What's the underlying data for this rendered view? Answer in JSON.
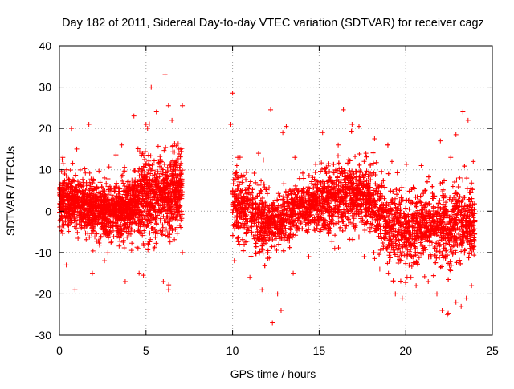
{
  "chart_data": {
    "type": "scatter",
    "title": "Day 182 of 2011, Sidereal Day-to-day VTEC variation (SDTVAR) for receiver cagz",
    "xlabel": "GPS time / hours",
    "ylabel": "SDTVAR / TECUs",
    "xlim": [
      0,
      25
    ],
    "ylim": [
      -30,
      40
    ],
    "xticks": [
      0,
      5,
      10,
      15,
      20,
      25
    ],
    "yticks": [
      -30,
      -20,
      -10,
      0,
      10,
      20,
      30,
      40
    ],
    "xtick_labels": [
      "0",
      "5",
      "10",
      "15",
      "20",
      "25"
    ],
    "ytick_labels": [
      "-30",
      "-20",
      "-10",
      "0",
      "10",
      "20",
      "30",
      "40"
    ],
    "grid": true,
    "legend": "none",
    "marker": "+",
    "series": [
      {
        "name": "SDTVAR",
        "color": "#ff0000",
        "coverage_hours": [
          [
            0,
            7.1
          ],
          [
            10,
            24
          ]
        ],
        "gap_hours": [
          7.1,
          10
        ],
        "center_trend": [
          {
            "x": 0.0,
            "y": 2
          },
          {
            "x": 1.0,
            "y": 2
          },
          {
            "x": 2.0,
            "y": 0
          },
          {
            "x": 3.0,
            "y": 0
          },
          {
            "x": 4.0,
            "y": 1
          },
          {
            "x": 5.0,
            "y": 3
          },
          {
            "x": 6.0,
            "y": 4
          },
          {
            "x": 7.0,
            "y": 4
          },
          {
            "x": 10.0,
            "y": 2
          },
          {
            "x": 11.0,
            "y": 0
          },
          {
            "x": 12.0,
            "y": -3
          },
          {
            "x": 13.0,
            "y": -1
          },
          {
            "x": 14.0,
            "y": 1
          },
          {
            "x": 15.0,
            "y": 2
          },
          {
            "x": 16.0,
            "y": 3
          },
          {
            "x": 17.0,
            "y": 4
          },
          {
            "x": 18.0,
            "y": 2
          },
          {
            "x": 19.0,
            "y": -3
          },
          {
            "x": 20.0,
            "y": -5
          },
          {
            "x": 21.0,
            "y": -3
          },
          {
            "x": 22.0,
            "y": -4
          },
          {
            "x": 23.0,
            "y": -3
          },
          {
            "x": 24.0,
            "y": -3
          }
        ],
        "points": [
          {
            "x": 6.1,
            "y": 33
          },
          {
            "x": 5.3,
            "y": 30
          },
          {
            "x": 10.0,
            "y": 28.5
          },
          {
            "x": 7.1,
            "y": 25.5
          },
          {
            "x": 6.3,
            "y": 25.5
          },
          {
            "x": 5.6,
            "y": 24
          },
          {
            "x": 12.2,
            "y": 24.5
          },
          {
            "x": 16.4,
            "y": 24.5
          },
          {
            "x": 23.3,
            "y": 24
          },
          {
            "x": 4.3,
            "y": 23
          },
          {
            "x": 5.0,
            "y": 21
          },
          {
            "x": 0.7,
            "y": 20
          },
          {
            "x": 1.7,
            "y": 21
          },
          {
            "x": 9.9,
            "y": 21
          },
          {
            "x": 13.1,
            "y": 20.5
          },
          {
            "x": 16.9,
            "y": 21
          },
          {
            "x": 17.3,
            "y": 20.5
          },
          {
            "x": 23.6,
            "y": 22
          },
          {
            "x": 22.9,
            "y": 18.5
          },
          {
            "x": 15.2,
            "y": 19
          },
          {
            "x": 6.5,
            "y": 22
          },
          {
            "x": 12.9,
            "y": 19
          },
          {
            "x": 18.2,
            "y": 17.5
          },
          {
            "x": 22.0,
            "y": 17
          },
          {
            "x": 0.2,
            "y": 13
          },
          {
            "x": 1.0,
            "y": 15
          },
          {
            "x": 3.6,
            "y": 16
          },
          {
            "x": 4.8,
            "y": 14
          },
          {
            "x": 6.9,
            "y": 15
          },
          {
            "x": 10.3,
            "y": 13
          },
          {
            "x": 11.5,
            "y": 14
          },
          {
            "x": 13.6,
            "y": 13
          },
          {
            "x": 16.1,
            "y": 16
          },
          {
            "x": 17.7,
            "y": 14
          },
          {
            "x": 19.2,
            "y": 12
          },
          {
            "x": 20.9,
            "y": 11
          },
          {
            "x": 22.6,
            "y": 13
          },
          {
            "x": 23.9,
            "y": 12
          },
          {
            "x": 0.9,
            "y": -19
          },
          {
            "x": 6.3,
            "y": -19
          },
          {
            "x": 3.8,
            "y": -17
          },
          {
            "x": 1.9,
            "y": -15
          },
          {
            "x": 4.6,
            "y": -15
          },
          {
            "x": 6.0,
            "y": -17
          },
          {
            "x": 0.4,
            "y": -13
          },
          {
            "x": 2.6,
            "y": -12
          },
          {
            "x": 7.1,
            "y": -10
          },
          {
            "x": 12.3,
            "y": -27
          },
          {
            "x": 12.8,
            "y": -24
          },
          {
            "x": 12.6,
            "y": -20
          },
          {
            "x": 11.7,
            "y": -19
          },
          {
            "x": 10.1,
            "y": -12
          },
          {
            "x": 11.0,
            "y": -16
          },
          {
            "x": 13.5,
            "y": -15
          },
          {
            "x": 14.4,
            "y": -11
          },
          {
            "x": 15.9,
            "y": -9
          },
          {
            "x": 17.6,
            "y": -11
          },
          {
            "x": 18.5,
            "y": -14
          },
          {
            "x": 19.4,
            "y": -20
          },
          {
            "x": 19.8,
            "y": -21
          },
          {
            "x": 20.6,
            "y": -18
          },
          {
            "x": 21.3,
            "y": -17
          },
          {
            "x": 21.8,
            "y": -20
          },
          {
            "x": 22.1,
            "y": -24
          },
          {
            "x": 22.4,
            "y": -25
          },
          {
            "x": 22.9,
            "y": -22
          },
          {
            "x": 23.2,
            "y": -23
          },
          {
            "x": 23.5,
            "y": -21
          },
          {
            "x": 23.8,
            "y": -18
          },
          {
            "x": 20.3,
            "y": -16
          },
          {
            "x": 19.0,
            "y": -15
          }
        ]
      }
    ]
  }
}
